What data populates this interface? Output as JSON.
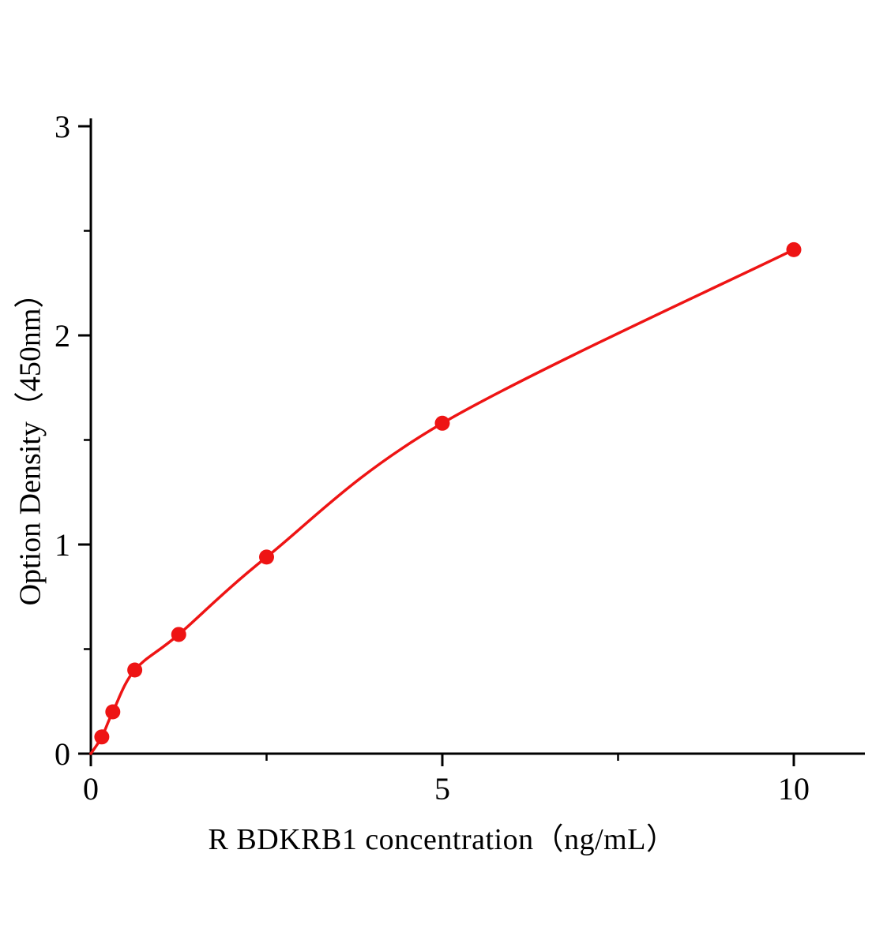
{
  "chart_data": {
    "type": "scatter",
    "title": "",
    "xlabel": "R BDKRB1  concentration（ng/mL）",
    "ylabel": "Option Density（450nm）",
    "x": [
      0.156,
      0.3125,
      0.625,
      1.25,
      2.5,
      5,
      10
    ],
    "y": [
      0.08,
      0.2,
      0.4,
      0.57,
      0.94,
      1.58,
      2.41
    ],
    "curve_origin": [
      0,
      0
    ],
    "xlim": [
      0,
      11
    ],
    "ylim": [
      0,
      3
    ],
    "x_ticks": [
      0,
      5,
      10
    ],
    "x_tick_labels": [
      "0",
      "5",
      "10"
    ],
    "x_minor_ticks": [
      2.5,
      7.5
    ],
    "y_ticks": [
      0,
      1,
      2,
      3
    ],
    "y_tick_labels": [
      "0",
      "1",
      "2",
      "3"
    ],
    "y_minor_ticks": [
      0.5,
      1.5,
      2.5
    ],
    "grid": false,
    "legend": null,
    "colors": {
      "curve": "#ee1414",
      "points": "#ee1414",
      "axis": "#000000",
      "background": "#ffffff"
    }
  }
}
